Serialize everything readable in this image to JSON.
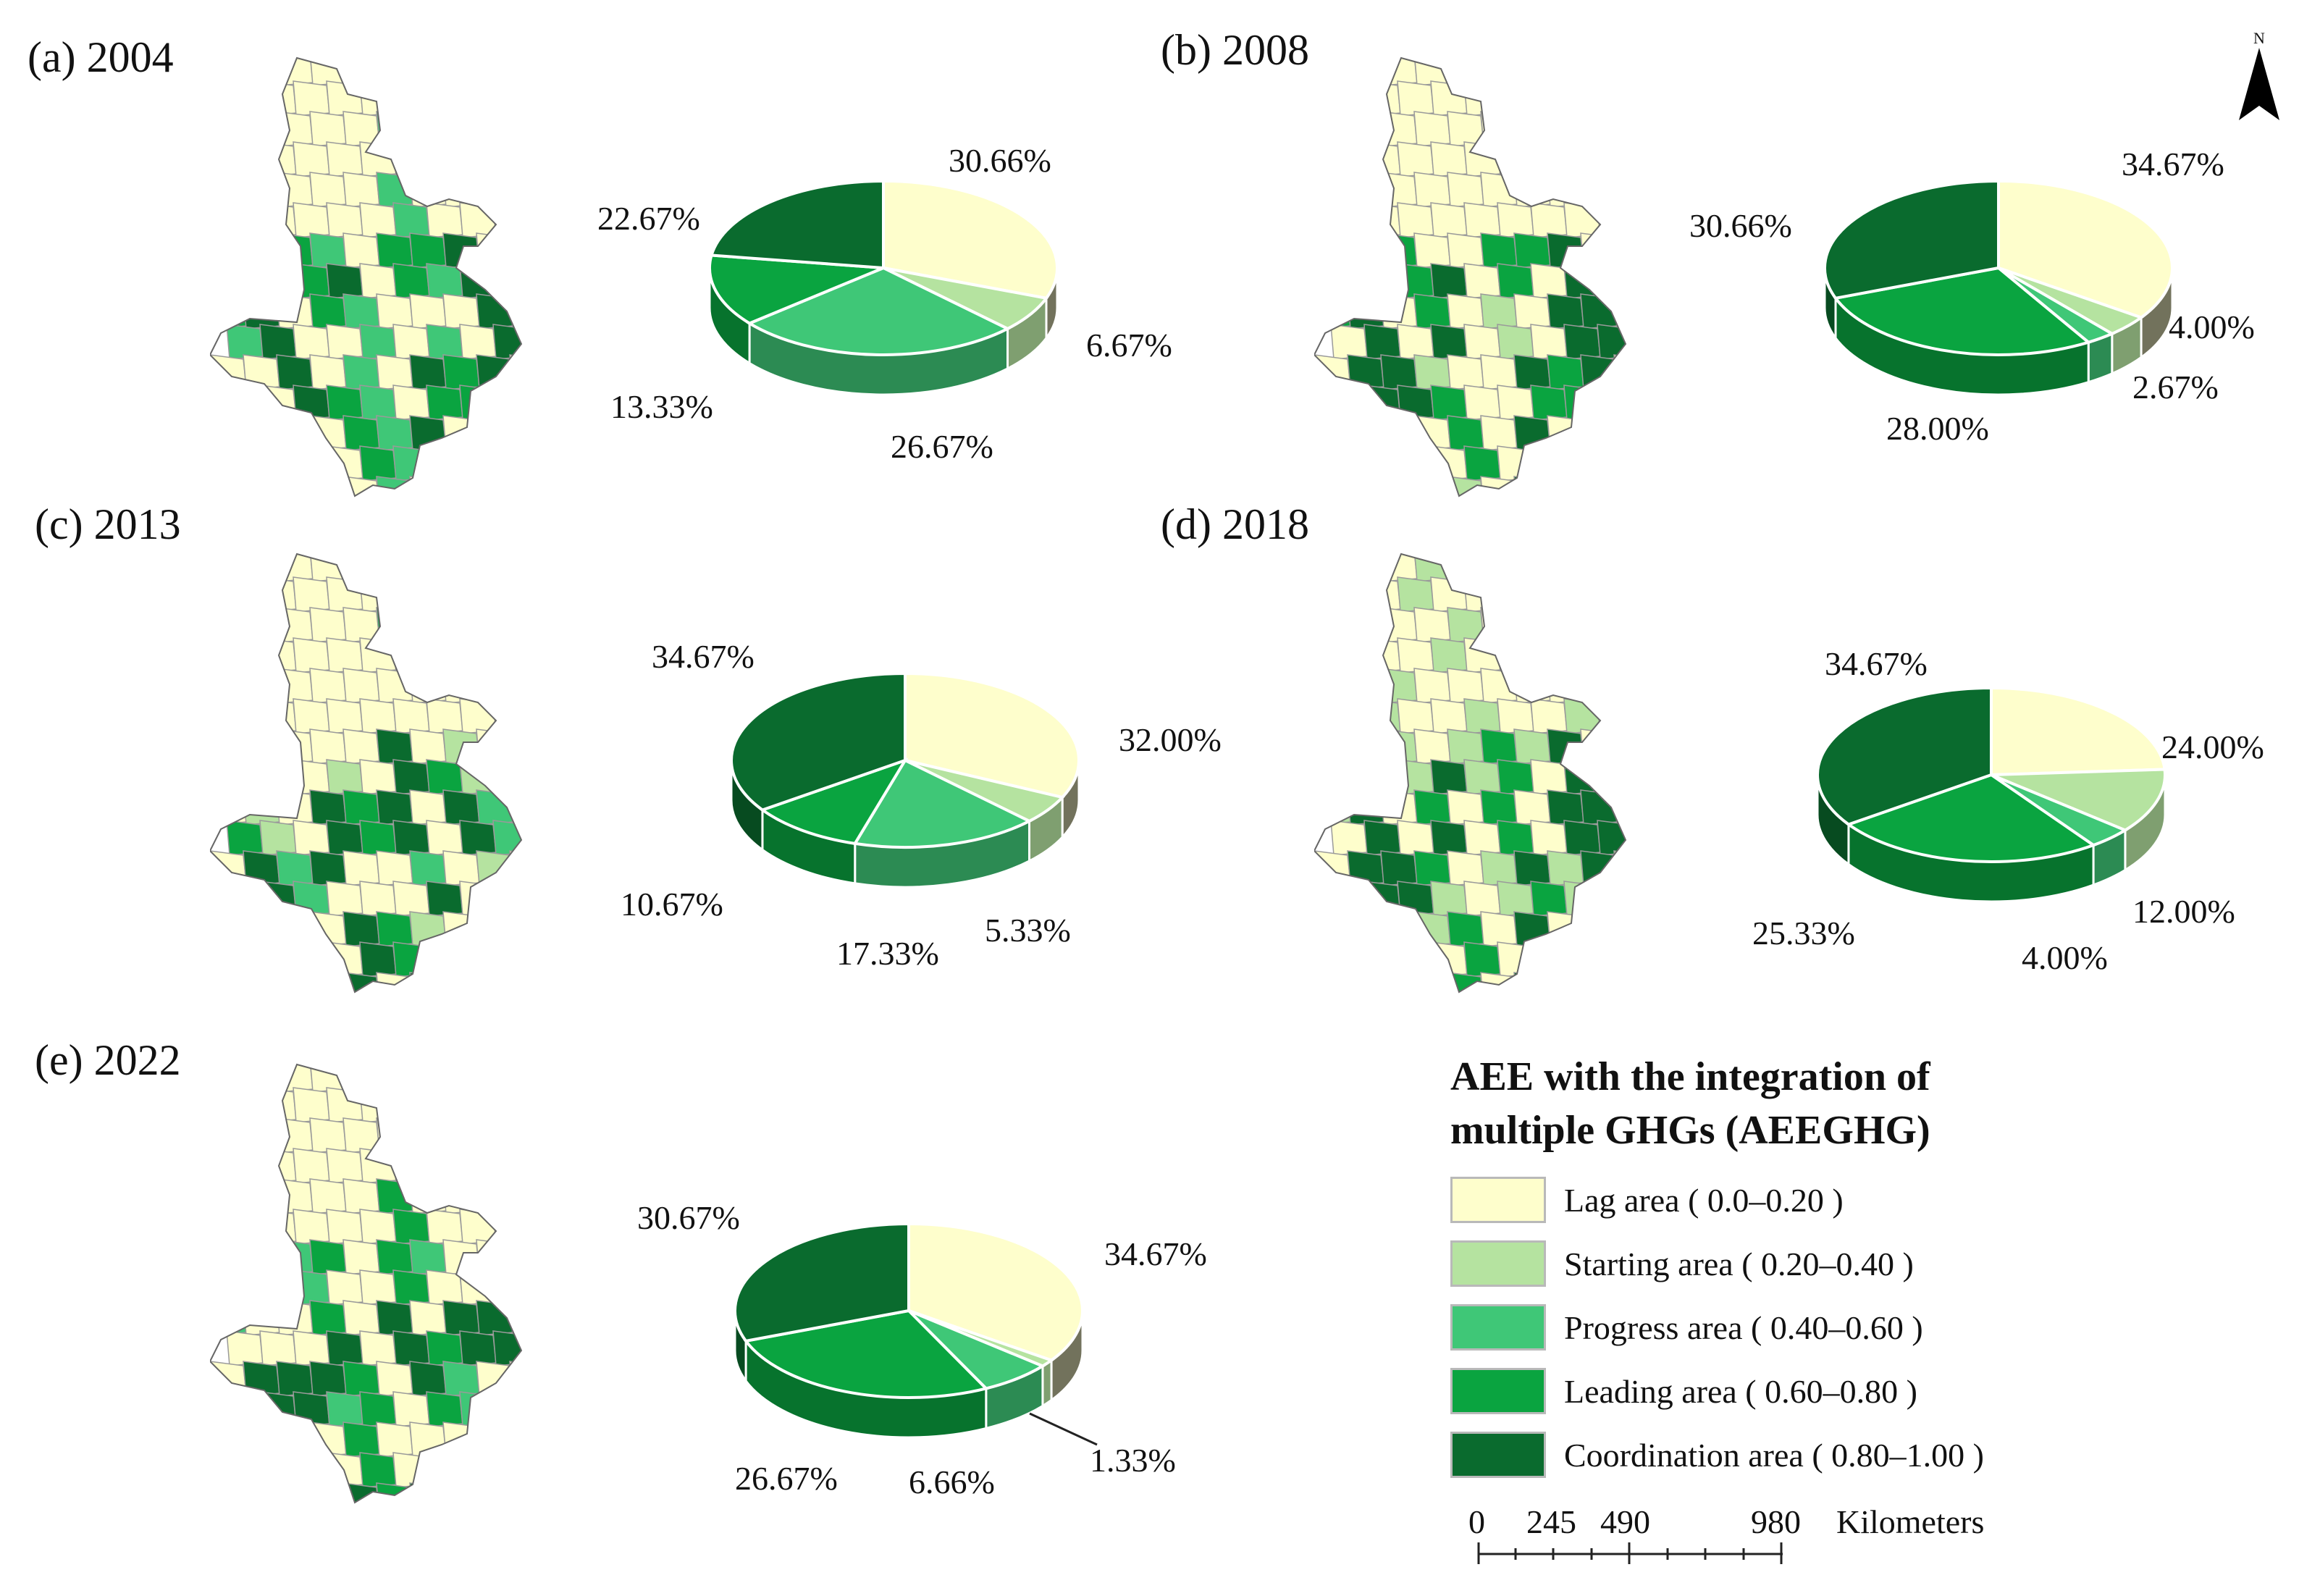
{
  "colors": {
    "lag": "#fefecc",
    "starting": "#b5e3a0",
    "progress": "#3fc777",
    "leading": "#0aa440",
    "coordination": "#0a6b2e"
  },
  "panels": [
    {
      "id": "a",
      "label": "(a) 2004"
    },
    {
      "id": "b",
      "label": "(b) 2008"
    },
    {
      "id": "c",
      "label": "(c) 2013"
    },
    {
      "id": "d",
      "label": "(d) 2018"
    },
    {
      "id": "e",
      "label": "(e) 2022"
    }
  ],
  "chart_data": [
    {
      "type": "pie",
      "panel": "(a) 2004",
      "slices": [
        {
          "category": "Lag area",
          "value": 30.66,
          "label": "30.66%"
        },
        {
          "category": "Starting area",
          "value": 6.67,
          "label": "6.67%"
        },
        {
          "category": "Progress area",
          "value": 26.67,
          "label": "26.67%"
        },
        {
          "category": "Leading area",
          "value": 13.33,
          "label": "13.33%"
        },
        {
          "category": "Coordination area",
          "value": 22.67,
          "label": "22.67%"
        }
      ]
    },
    {
      "type": "pie",
      "panel": "(b) 2008",
      "slices": [
        {
          "category": "Lag area",
          "value": 34.67,
          "label": "34.67%"
        },
        {
          "category": "Starting area",
          "value": 4.0,
          "label": "4.00%"
        },
        {
          "category": "Progress area",
          "value": 2.67,
          "label": "2.67%"
        },
        {
          "category": "Leading area",
          "value": 28.0,
          "label": "28.00%"
        },
        {
          "category": "Coordination area",
          "value": 30.66,
          "label": "30.66%"
        }
      ]
    },
    {
      "type": "pie",
      "panel": "(c) 2013",
      "slices": [
        {
          "category": "Lag area",
          "value": 32.0,
          "label": "32.00%"
        },
        {
          "category": "Starting area",
          "value": 5.33,
          "label": "5.33%"
        },
        {
          "category": "Progress area",
          "value": 17.33,
          "label": "17.33%"
        },
        {
          "category": "Leading area",
          "value": 10.67,
          "label": "10.67%"
        },
        {
          "category": "Coordination area",
          "value": 34.67,
          "label": "34.67%"
        }
      ]
    },
    {
      "type": "pie",
      "panel": "(d) 2018",
      "slices": [
        {
          "category": "Lag area",
          "value": 24.0,
          "label": "24.00%"
        },
        {
          "category": "Starting area",
          "value": 12.0,
          "label": "12.00%"
        },
        {
          "category": "Progress area",
          "value": 4.0,
          "label": "4.00%"
        },
        {
          "category": "Leading area",
          "value": 25.33,
          "label": "25.33%"
        },
        {
          "category": "Coordination area",
          "value": 34.67,
          "label": "34.67%"
        }
      ]
    },
    {
      "type": "pie",
      "panel": "(e) 2022",
      "slices": [
        {
          "category": "Lag area",
          "value": 34.67,
          "label": "34.67%"
        },
        {
          "category": "Starting area",
          "value": 1.33,
          "label": "1.33%"
        },
        {
          "category": "Progress area",
          "value": 6.66,
          "label": "6.66%"
        },
        {
          "category": "Leading area",
          "value": 26.67,
          "label": "26.67%"
        },
        {
          "category": "Coordination area",
          "value": 30.67,
          "label": "30.67%"
        }
      ]
    }
  ],
  "legend": {
    "title_line1": "AEE with the integration of",
    "title_line2": "multiple GHGs (AEEGHG)",
    "items": [
      {
        "key": "lag",
        "label": "Lag area ( 0.0–0.20 )"
      },
      {
        "key": "starting",
        "label": "Starting area ( 0.20–0.40 )"
      },
      {
        "key": "progress",
        "label": "Progress area ( 0.40–0.60 )"
      },
      {
        "key": "leading",
        "label": "Leading area ( 0.60–0.80 )"
      },
      {
        "key": "coordination",
        "label": "Coordination area ( 0.80–1.00 )"
      }
    ]
  },
  "scale": {
    "ticks": [
      "0",
      "245",
      "490",
      "980"
    ],
    "unit": "Kilometers"
  },
  "north_label": "N",
  "icons": {
    "north": "north-arrow-icon"
  }
}
